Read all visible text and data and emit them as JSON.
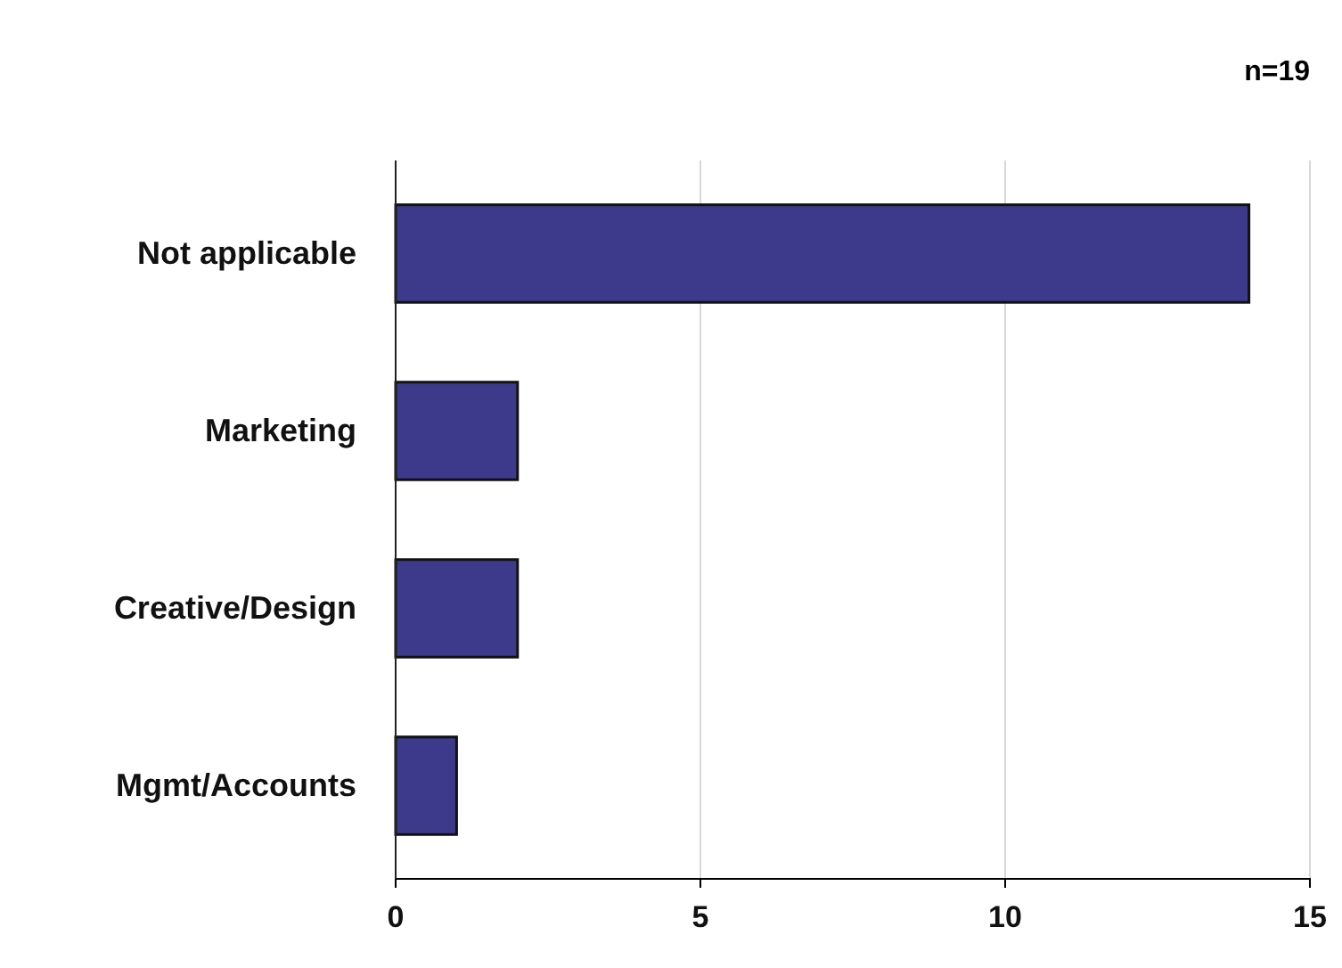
{
  "chart_data": {
    "type": "bar",
    "orientation": "horizontal",
    "categories": [
      "Not applicable",
      "Marketing",
      "Creative/Design",
      "Mgmt/Accounts"
    ],
    "values": [
      14,
      2,
      2,
      1
    ],
    "color": "#3d3a8c",
    "xlim": [
      0,
      15
    ],
    "xticks": [
      0,
      5,
      10,
      15
    ],
    "grid": "x",
    "annotations": [
      "n=19"
    ]
  }
}
